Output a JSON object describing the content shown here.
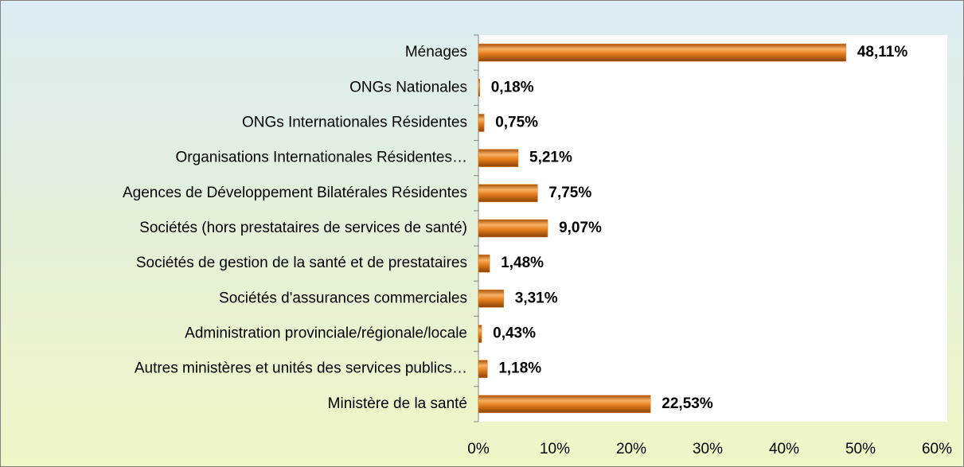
{
  "chart_data": {
    "type": "hbar",
    "categories": [
      "Ménages",
      "ONGs Nationales",
      "ONGs Internationales Résidentes",
      "Organisations Internationales Résidentes…",
      "Agences de Développement Bilatérales Résidentes",
      "Sociétés (hors prestataires de services de santé)",
      "Sociétés de gestion de la santé et de prestataires",
      "Sociétés d'assurances commerciales",
      "Administration provinciale/régionale/locale",
      "Autres ministères et unités des services publics…",
      "Ministère de la santé"
    ],
    "values": [
      48.11,
      0.18,
      0.75,
      5.21,
      7.75,
      9.07,
      1.48,
      3.31,
      0.43,
      1.18,
      22.53
    ],
    "value_labels": [
      "48,11%",
      "0,18%",
      "0,75%",
      "5,21%",
      "7,75%",
      "9,07%",
      "1,48%",
      "3,31%",
      "0,43%",
      "1,18%",
      "22,53%"
    ],
    "color": "#e8801e",
    "xlim": [
      0,
      60
    ],
    "xticks": [
      {
        "value": 0,
        "label": "0%"
      },
      {
        "value": 10,
        "label": "10%"
      },
      {
        "value": 20,
        "label": "20%"
      },
      {
        "value": 30,
        "label": "30%"
      },
      {
        "value": 40,
        "label": "40%"
      },
      {
        "value": 50,
        "label": "50%"
      },
      {
        "value": 60,
        "label": "60%"
      }
    ],
    "grid": false
  }
}
